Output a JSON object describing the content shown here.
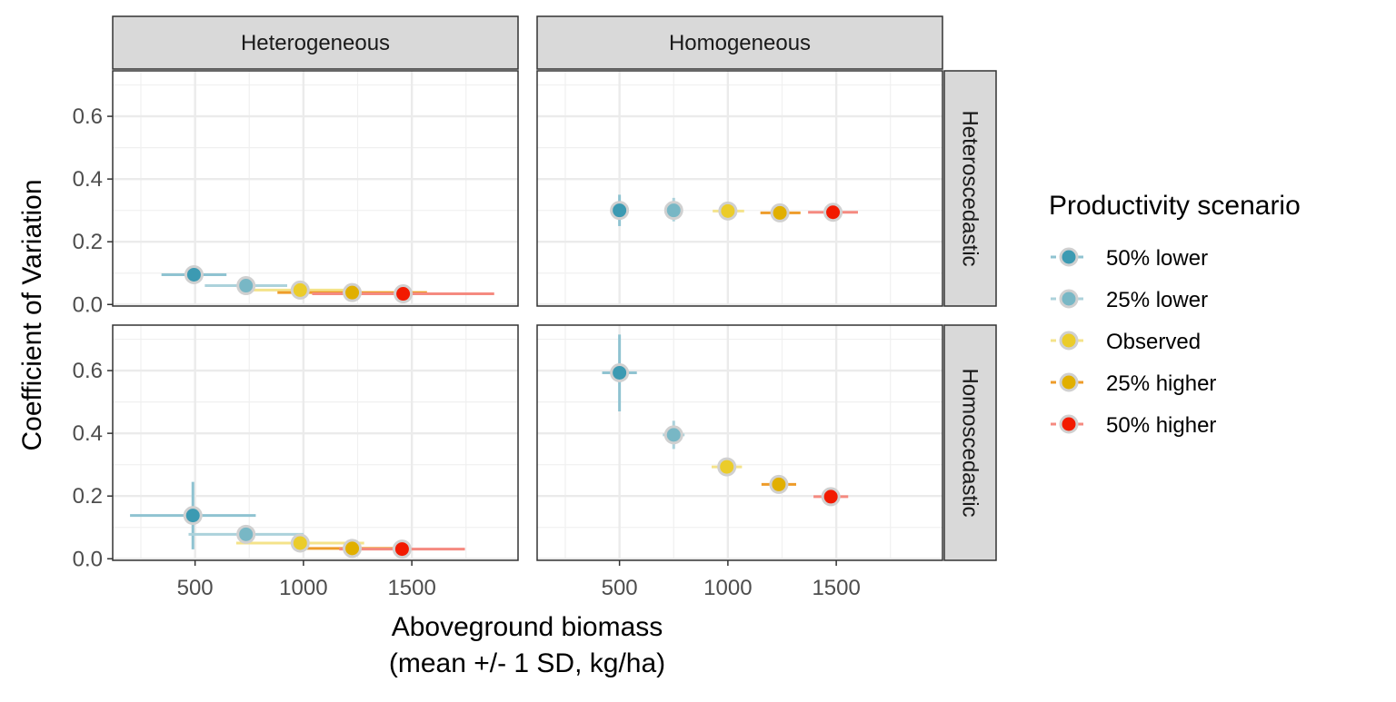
{
  "chart_data": {
    "type": "scatter",
    "ylabel": "Coefficient of Variation",
    "xlabel_lines": [
      "Aboveground biomass",
      "(mean +/- 1 SD, kg/ha)"
    ],
    "xlim": [
      120,
      1990
    ],
    "ylim": [
      -0.005,
      0.745
    ],
    "x_ticks": [
      500,
      1000,
      1500
    ],
    "y_ticks": [
      0.0,
      0.2,
      0.4,
      0.6
    ],
    "x_tick_labels": [
      "500",
      "1000",
      "1500"
    ],
    "y_tick_labels": [
      "0.0",
      "0.2",
      "0.4",
      "0.6"
    ],
    "grid": true,
    "facets": {
      "cols": [
        "Heterogeneous",
        "Homogeneous"
      ],
      "rows": [
        "Heteroscedastic",
        "Homoscedastic"
      ]
    },
    "legend": {
      "title": "Productivity scenario",
      "placement": "right"
    },
    "series": [
      {
        "name": "50% lower",
        "color": "#3C9AB2",
        "bar_color": "#8FC3D1"
      },
      {
        "name": "25% lower",
        "color": "#78B7C5",
        "bar_color": "#ACD2DB"
      },
      {
        "name": "Observed",
        "color": "#EBCC2A",
        "bar_color": "#F4E38A"
      },
      {
        "name": "25% higher",
        "color": "#E1AF00",
        "bar_color": "#EE9C2A"
      },
      {
        "name": "50% higher",
        "color": "#F21A00",
        "bar_color": "#F58A80"
      }
    ],
    "panels": [
      {
        "col": "Heterogeneous",
        "row": "Heteroscedastic",
        "points": [
          {
            "series": "50% lower",
            "x": 495,
            "y": 0.095,
            "x_lo": 345,
            "x_hi": 645,
            "y_lo": 0.09,
            "y_hi": 0.1
          },
          {
            "series": "25% lower",
            "x": 735,
            "y": 0.06,
            "x_lo": 545,
            "x_hi": 925,
            "y_lo": 0.055,
            "y_hi": 0.065
          },
          {
            "series": "Observed",
            "x": 985,
            "y": 0.046,
            "x_lo": 760,
            "x_hi": 1210,
            "y_lo": 0.042,
            "y_hi": 0.05
          },
          {
            "series": "25% higher",
            "x": 1225,
            "y": 0.038,
            "x_lo": 880,
            "x_hi": 1570,
            "y_lo": 0.034,
            "y_hi": 0.042
          },
          {
            "series": "50% higher",
            "x": 1460,
            "y": 0.034,
            "x_lo": 1040,
            "x_hi": 1880,
            "y_lo": 0.03,
            "y_hi": 0.038
          }
        ]
      },
      {
        "col": "Homogeneous",
        "row": "Heteroscedastic",
        "points": [
          {
            "series": "50% lower",
            "x": 500,
            "y": 0.3,
            "x_lo": 485,
            "x_hi": 515,
            "y_lo": 0.25,
            "y_hi": 0.35
          },
          {
            "series": "25% lower",
            "x": 750,
            "y": 0.3,
            "x_lo": 725,
            "x_hi": 775,
            "y_lo": 0.265,
            "y_hi": 0.34
          },
          {
            "series": "Observed",
            "x": 1000,
            "y": 0.298,
            "x_lo": 930,
            "x_hi": 1075,
            "y_lo": 0.28,
            "y_hi": 0.315
          },
          {
            "series": "25% higher",
            "x": 1240,
            "y": 0.292,
            "x_lo": 1150,
            "x_hi": 1335,
            "y_lo": 0.28,
            "y_hi": 0.305
          },
          {
            "series": "50% higher",
            "x": 1485,
            "y": 0.294,
            "x_lo": 1370,
            "x_hi": 1600,
            "y_lo": 0.285,
            "y_hi": 0.305
          }
        ]
      },
      {
        "col": "Heterogeneous",
        "row": "Homoscedastic",
        "points": [
          {
            "series": "50% lower",
            "x": 490,
            "y": 0.138,
            "x_lo": 200,
            "x_hi": 780,
            "y_lo": 0.03,
            "y_hi": 0.245
          },
          {
            "series": "25% lower",
            "x": 735,
            "y": 0.078,
            "x_lo": 470,
            "x_hi": 1000,
            "y_lo": 0.055,
            "y_hi": 0.1
          },
          {
            "series": "Observed",
            "x": 985,
            "y": 0.05,
            "x_lo": 690,
            "x_hi": 1280,
            "y_lo": 0.04,
            "y_hi": 0.06
          },
          {
            "series": "25% higher",
            "x": 1225,
            "y": 0.033,
            "x_lo": 985,
            "x_hi": 1465,
            "y_lo": 0.028,
            "y_hi": 0.038
          },
          {
            "series": "50% higher",
            "x": 1455,
            "y": 0.031,
            "x_lo": 1165,
            "x_hi": 1745,
            "y_lo": 0.027,
            "y_hi": 0.035
          }
        ]
      },
      {
        "col": "Homogeneous",
        "row": "Homoscedastic",
        "points": [
          {
            "series": "50% lower",
            "x": 500,
            "y": 0.593,
            "x_lo": 420,
            "x_hi": 580,
            "y_lo": 0.47,
            "y_hi": 0.715
          },
          {
            "series": "25% lower",
            "x": 750,
            "y": 0.395,
            "x_lo": 700,
            "x_hi": 800,
            "y_lo": 0.35,
            "y_hi": 0.44
          },
          {
            "series": "Observed",
            "x": 995,
            "y": 0.293,
            "x_lo": 925,
            "x_hi": 1065,
            "y_lo": 0.275,
            "y_hi": 0.31
          },
          {
            "series": "25% higher",
            "x": 1235,
            "y": 0.237,
            "x_lo": 1155,
            "x_hi": 1315,
            "y_lo": 0.225,
            "y_hi": 0.25
          },
          {
            "series": "50% higher",
            "x": 1475,
            "y": 0.198,
            "x_lo": 1395,
            "x_hi": 1555,
            "y_lo": 0.19,
            "y_hi": 0.206
          }
        ]
      }
    ]
  }
}
